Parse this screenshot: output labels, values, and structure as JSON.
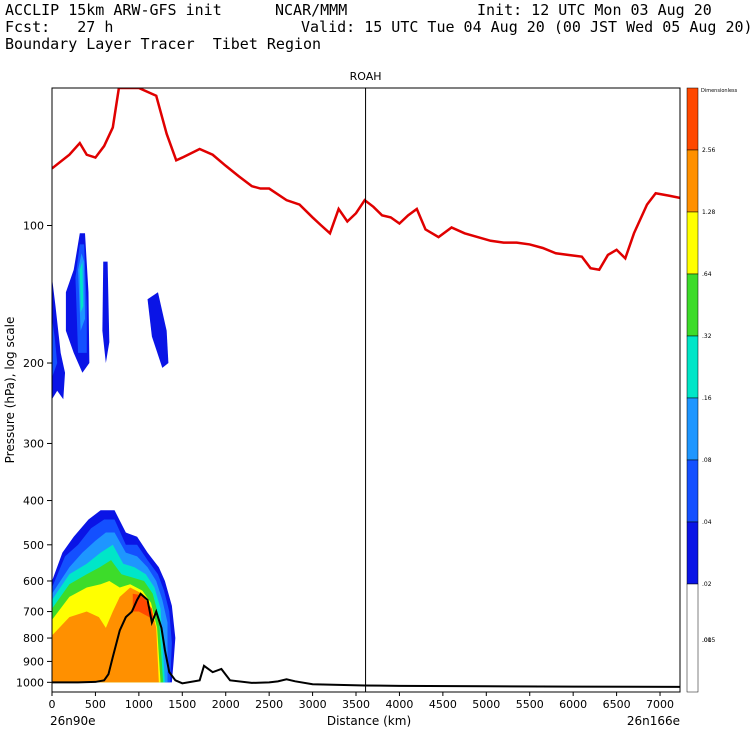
{
  "header": {
    "line1_left": "ACCLIP 15km ARW-GFS init",
    "line1_center": "NCAR/MMM",
    "line1_right": "Init: 12 UTC Mon 03 Aug 20",
    "line2_left": "Fcst:   27 h",
    "line2_right": "Valid: 15 UTC Tue 04 Aug 20 (00 JST Wed 05 Aug 20)",
    "line3_left": "Boundary Layer Tracer  Tibet Region"
  },
  "chart_data": {
    "type": "heatmap",
    "title": "",
    "top_label": "ROAH",
    "marker_x_km": 3610,
    "xlabel": "Distance (km)",
    "ylabel": "Pressure (hPa), log scale",
    "x_start_label": "26n90e",
    "x_end_label": "26n166e",
    "xlim": [
      0,
      7230
    ],
    "ylim_hpa": [
      1050,
      50
    ],
    "y_scale": "log",
    "x_ticks": [
      0,
      500,
      1000,
      1500,
      2000,
      2500,
      3000,
      3500,
      4000,
      4500,
      5000,
      5500,
      6000,
      6500,
      7000
    ],
    "y_ticks": [
      100,
      200,
      300,
      400,
      500,
      600,
      700,
      800,
      900,
      1000
    ],
    "colorbar": {
      "label": "Dimensionless",
      "levels": [
        "2.56",
        "1.28",
        ".64",
        ".32",
        ".16",
        ".08",
        ".04",
        ".02",
        ".01",
        ".005"
      ],
      "colors": [
        "#ff4800",
        "#ff9000",
        "#ffff00",
        "#3ddc2a",
        "#00e6c8",
        "#1e96ff",
        "#1450ff",
        "#0a14e6",
        "#ffffff"
      ]
    },
    "series": [
      {
        "name": "tropopause",
        "color": "#e00000",
        "points": [
          [
            0,
            75
          ],
          [
            200,
            70
          ],
          [
            320,
            66
          ],
          [
            400,
            70
          ],
          [
            500,
            71
          ],
          [
            600,
            67
          ],
          [
            700,
            61
          ],
          [
            770,
            50
          ],
          [
            900,
            50
          ],
          [
            1000,
            50
          ],
          [
            1200,
            52
          ],
          [
            1320,
            63
          ],
          [
            1430,
            72
          ],
          [
            1500,
            71
          ],
          [
            1700,
            68
          ],
          [
            1850,
            70
          ],
          [
            2000,
            74
          ],
          [
            2150,
            78
          ],
          [
            2300,
            82
          ],
          [
            2400,
            83
          ],
          [
            2500,
            83
          ],
          [
            2700,
            88
          ],
          [
            2850,
            90
          ],
          [
            3000,
            96
          ],
          [
            3100,
            100
          ],
          [
            3200,
            104
          ],
          [
            3300,
            92
          ],
          [
            3400,
            98
          ],
          [
            3500,
            94
          ],
          [
            3600,
            88
          ],
          [
            3700,
            91
          ],
          [
            3800,
            95
          ],
          [
            3900,
            96
          ],
          [
            4000,
            99
          ],
          [
            4100,
            95
          ],
          [
            4200,
            92
          ],
          [
            4300,
            102
          ],
          [
            4450,
            106
          ],
          [
            4600,
            101
          ],
          [
            4750,
            104
          ],
          [
            4900,
            106
          ],
          [
            5050,
            108
          ],
          [
            5200,
            109
          ],
          [
            5350,
            109
          ],
          [
            5500,
            110
          ],
          [
            5650,
            112
          ],
          [
            5800,
            115
          ],
          [
            5950,
            116
          ],
          [
            6100,
            117
          ],
          [
            6200,
            124
          ],
          [
            6300,
            125
          ],
          [
            6400,
            116
          ],
          [
            6500,
            113
          ],
          [
            6600,
            118
          ],
          [
            6700,
            104
          ],
          [
            6850,
            90
          ],
          [
            6950,
            85
          ],
          [
            7100,
            86
          ],
          [
            7230,
            87
          ]
        ]
      },
      {
        "name": "terrain",
        "color": "#000000",
        "points": [
          [
            0,
            1000
          ],
          [
            300,
            1000
          ],
          [
            500,
            998
          ],
          [
            600,
            990
          ],
          [
            650,
            960
          ],
          [
            700,
            880
          ],
          [
            780,
            770
          ],
          [
            850,
            720
          ],
          [
            920,
            700
          ],
          [
            980,
            660
          ],
          [
            1020,
            640
          ],
          [
            1100,
            660
          ],
          [
            1150,
            740
          ],
          [
            1200,
            700
          ],
          [
            1260,
            760
          ],
          [
            1300,
            850
          ],
          [
            1350,
            950
          ],
          [
            1420,
            990
          ],
          [
            1500,
            1005
          ],
          [
            1700,
            990
          ],
          [
            1750,
            920
          ],
          [
            1850,
            950
          ],
          [
            1950,
            935
          ],
          [
            2050,
            990
          ],
          [
            2300,
            1003
          ],
          [
            2500,
            1000
          ],
          [
            2600,
            995
          ],
          [
            2700,
            985
          ],
          [
            2800,
            995
          ],
          [
            3000,
            1010
          ],
          [
            3300,
            1013
          ],
          [
            3600,
            1016
          ],
          [
            4000,
            1018
          ],
          [
            5000,
            1020
          ],
          [
            6000,
            1022
          ],
          [
            7230,
            1023
          ]
        ]
      }
    ]
  }
}
